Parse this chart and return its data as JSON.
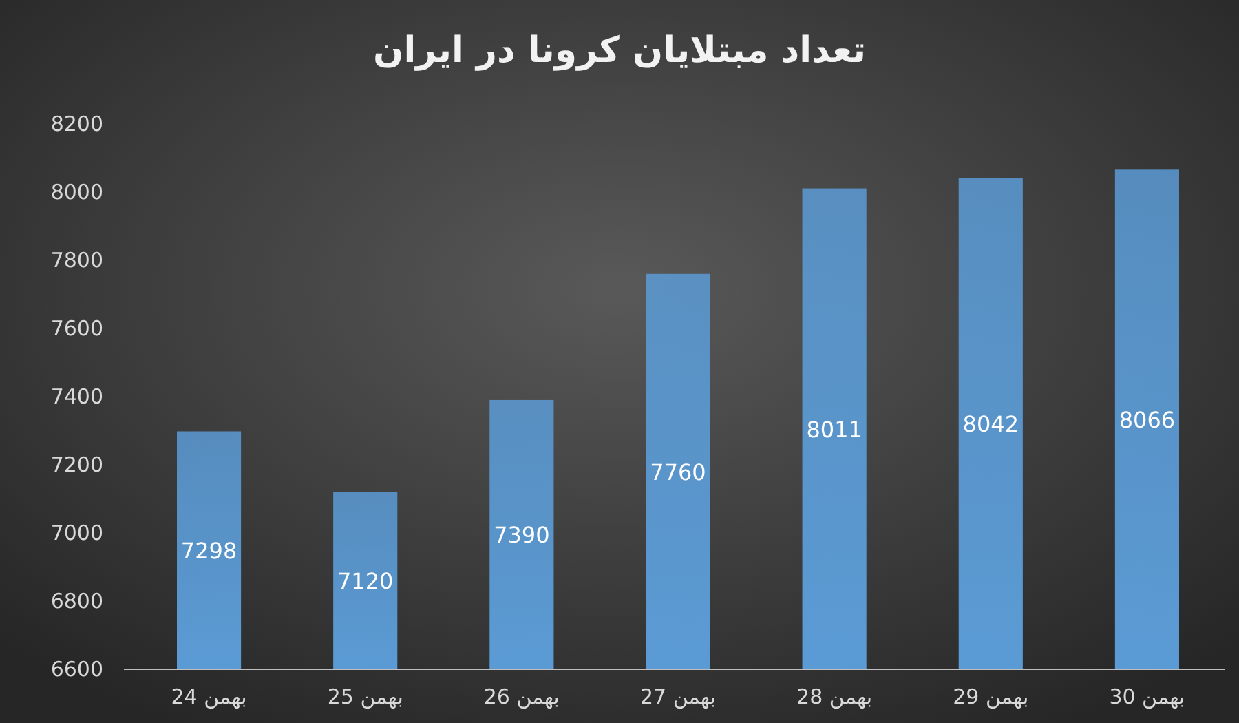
{
  "chart_data": {
    "type": "bar",
    "title": "تعداد مبتلایان کرونا در ایران",
    "categories": [
      "24 بهمن",
      "25 بهمن",
      "26 بهمن",
      "27 بهمن",
      "28 بهمن",
      "29 بهمن",
      "30 بهمن"
    ],
    "values": [
      7298,
      7120,
      7390,
      7760,
      8011,
      8042,
      8066
    ],
    "color": "#5b9bd5",
    "ylim": [
      6600,
      8200
    ],
    "yticks": [
      6600,
      6800,
      7000,
      7200,
      7400,
      7600,
      7800,
      8000,
      8200
    ],
    "grid": false,
    "data_labels": true
  }
}
